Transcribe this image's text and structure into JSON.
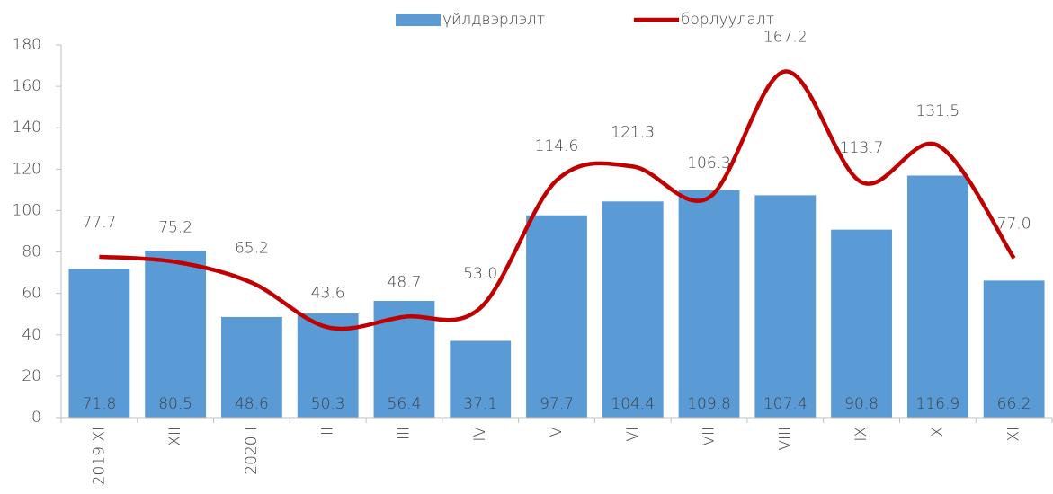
{
  "chart_data": {
    "type": "bar",
    "categories": [
      "2019 XI",
      "XII",
      "2020  I",
      "II",
      "III",
      "IV",
      "V",
      "VI",
      "VII",
      "VIII",
      "IX",
      "X",
      "XI"
    ],
    "series": [
      {
        "name": "үйлдвэрлэлт",
        "type": "bar",
        "color": "#5b9bd5",
        "values": [
          71.8,
          80.5,
          48.6,
          50.3,
          56.4,
          37.1,
          97.7,
          104.4,
          109.8,
          107.4,
          90.8,
          116.9,
          66.2
        ],
        "value_labels": [
          "71.8",
          "80.5",
          "48.6",
          "50.3",
          "56.4",
          "37.1",
          "97.7",
          "104.4",
          "109.8",
          "107.4",
          "90.8",
          "116.9",
          "66.2"
        ]
      },
      {
        "name": "борлуулалт",
        "type": "line",
        "color": "#c00000",
        "values": [
          77.7,
          75.2,
          65.2,
          43.6,
          48.7,
          53.0,
          114.6,
          121.3,
          106.3,
          167.2,
          113.7,
          131.5,
          77.0
        ],
        "value_labels": [
          "77.7",
          "75.2",
          "65.2",
          "43.6",
          "48.7",
          "53.0",
          "114.6",
          "121.3",
          "106.3",
          "167.2",
          "113.7",
          "131.5",
          "77.0"
        ]
      }
    ],
    "ylim": [
      0,
      180
    ],
    "yticks": [
      0,
      20,
      40,
      60,
      80,
      100,
      120,
      140,
      160,
      180
    ]
  }
}
